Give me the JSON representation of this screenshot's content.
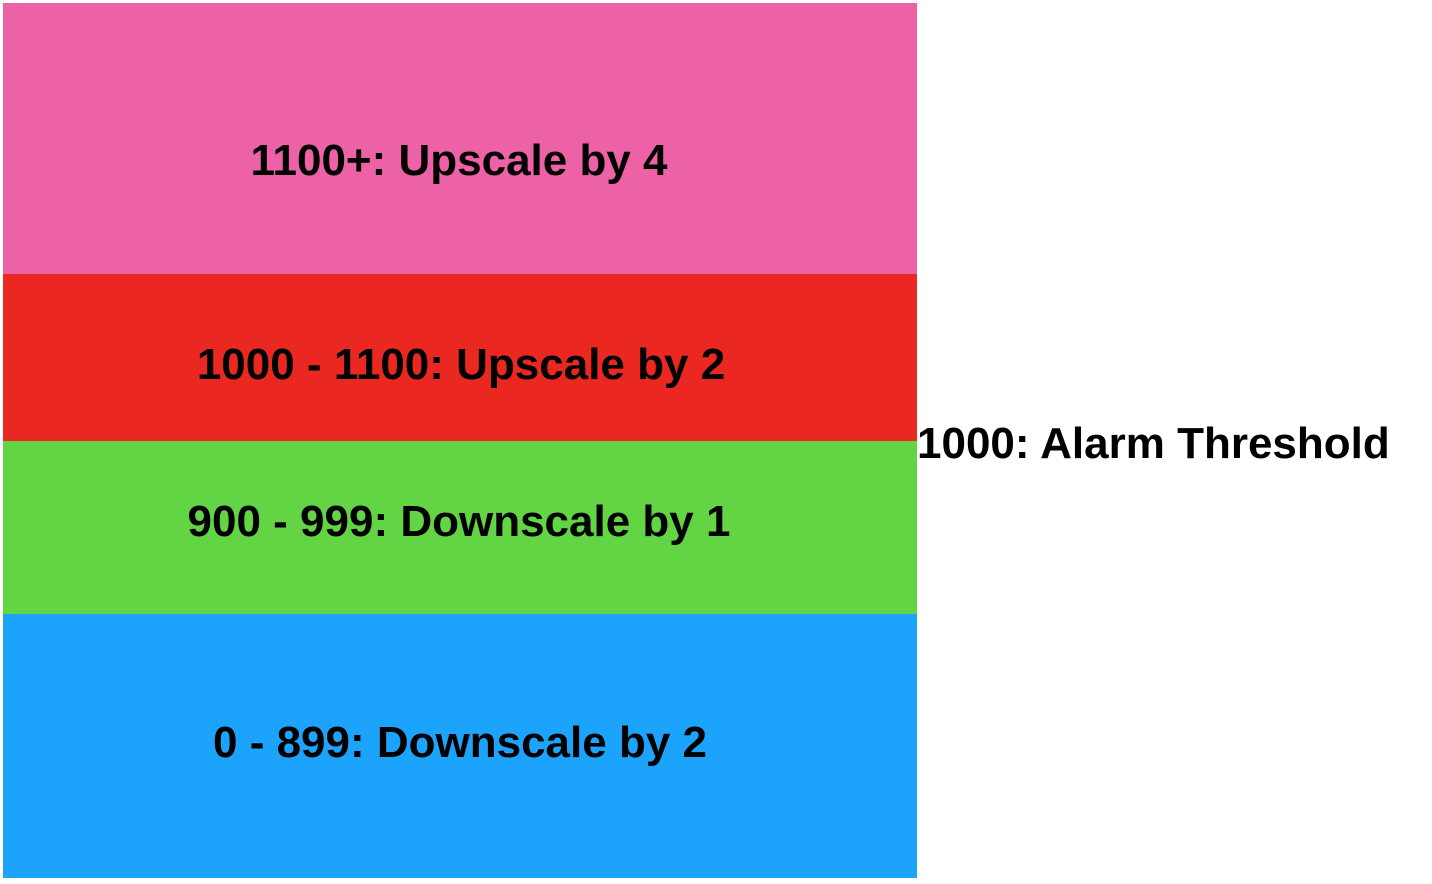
{
  "bands": [
    {
      "label": "1100+: Upscale by 4",
      "color": "#ED62A6"
    },
    {
      "label": "1000 - 1100: Upscale by 2",
      "color": "#EA2720"
    },
    {
      "label": "900 - 999: Downscale by 1",
      "color": "#63D544"
    },
    {
      "label": "0 - 899: Downscale by 2",
      "color": "#1CA3FC"
    }
  ],
  "threshold": {
    "label": "1000: Alarm Threshold"
  }
}
